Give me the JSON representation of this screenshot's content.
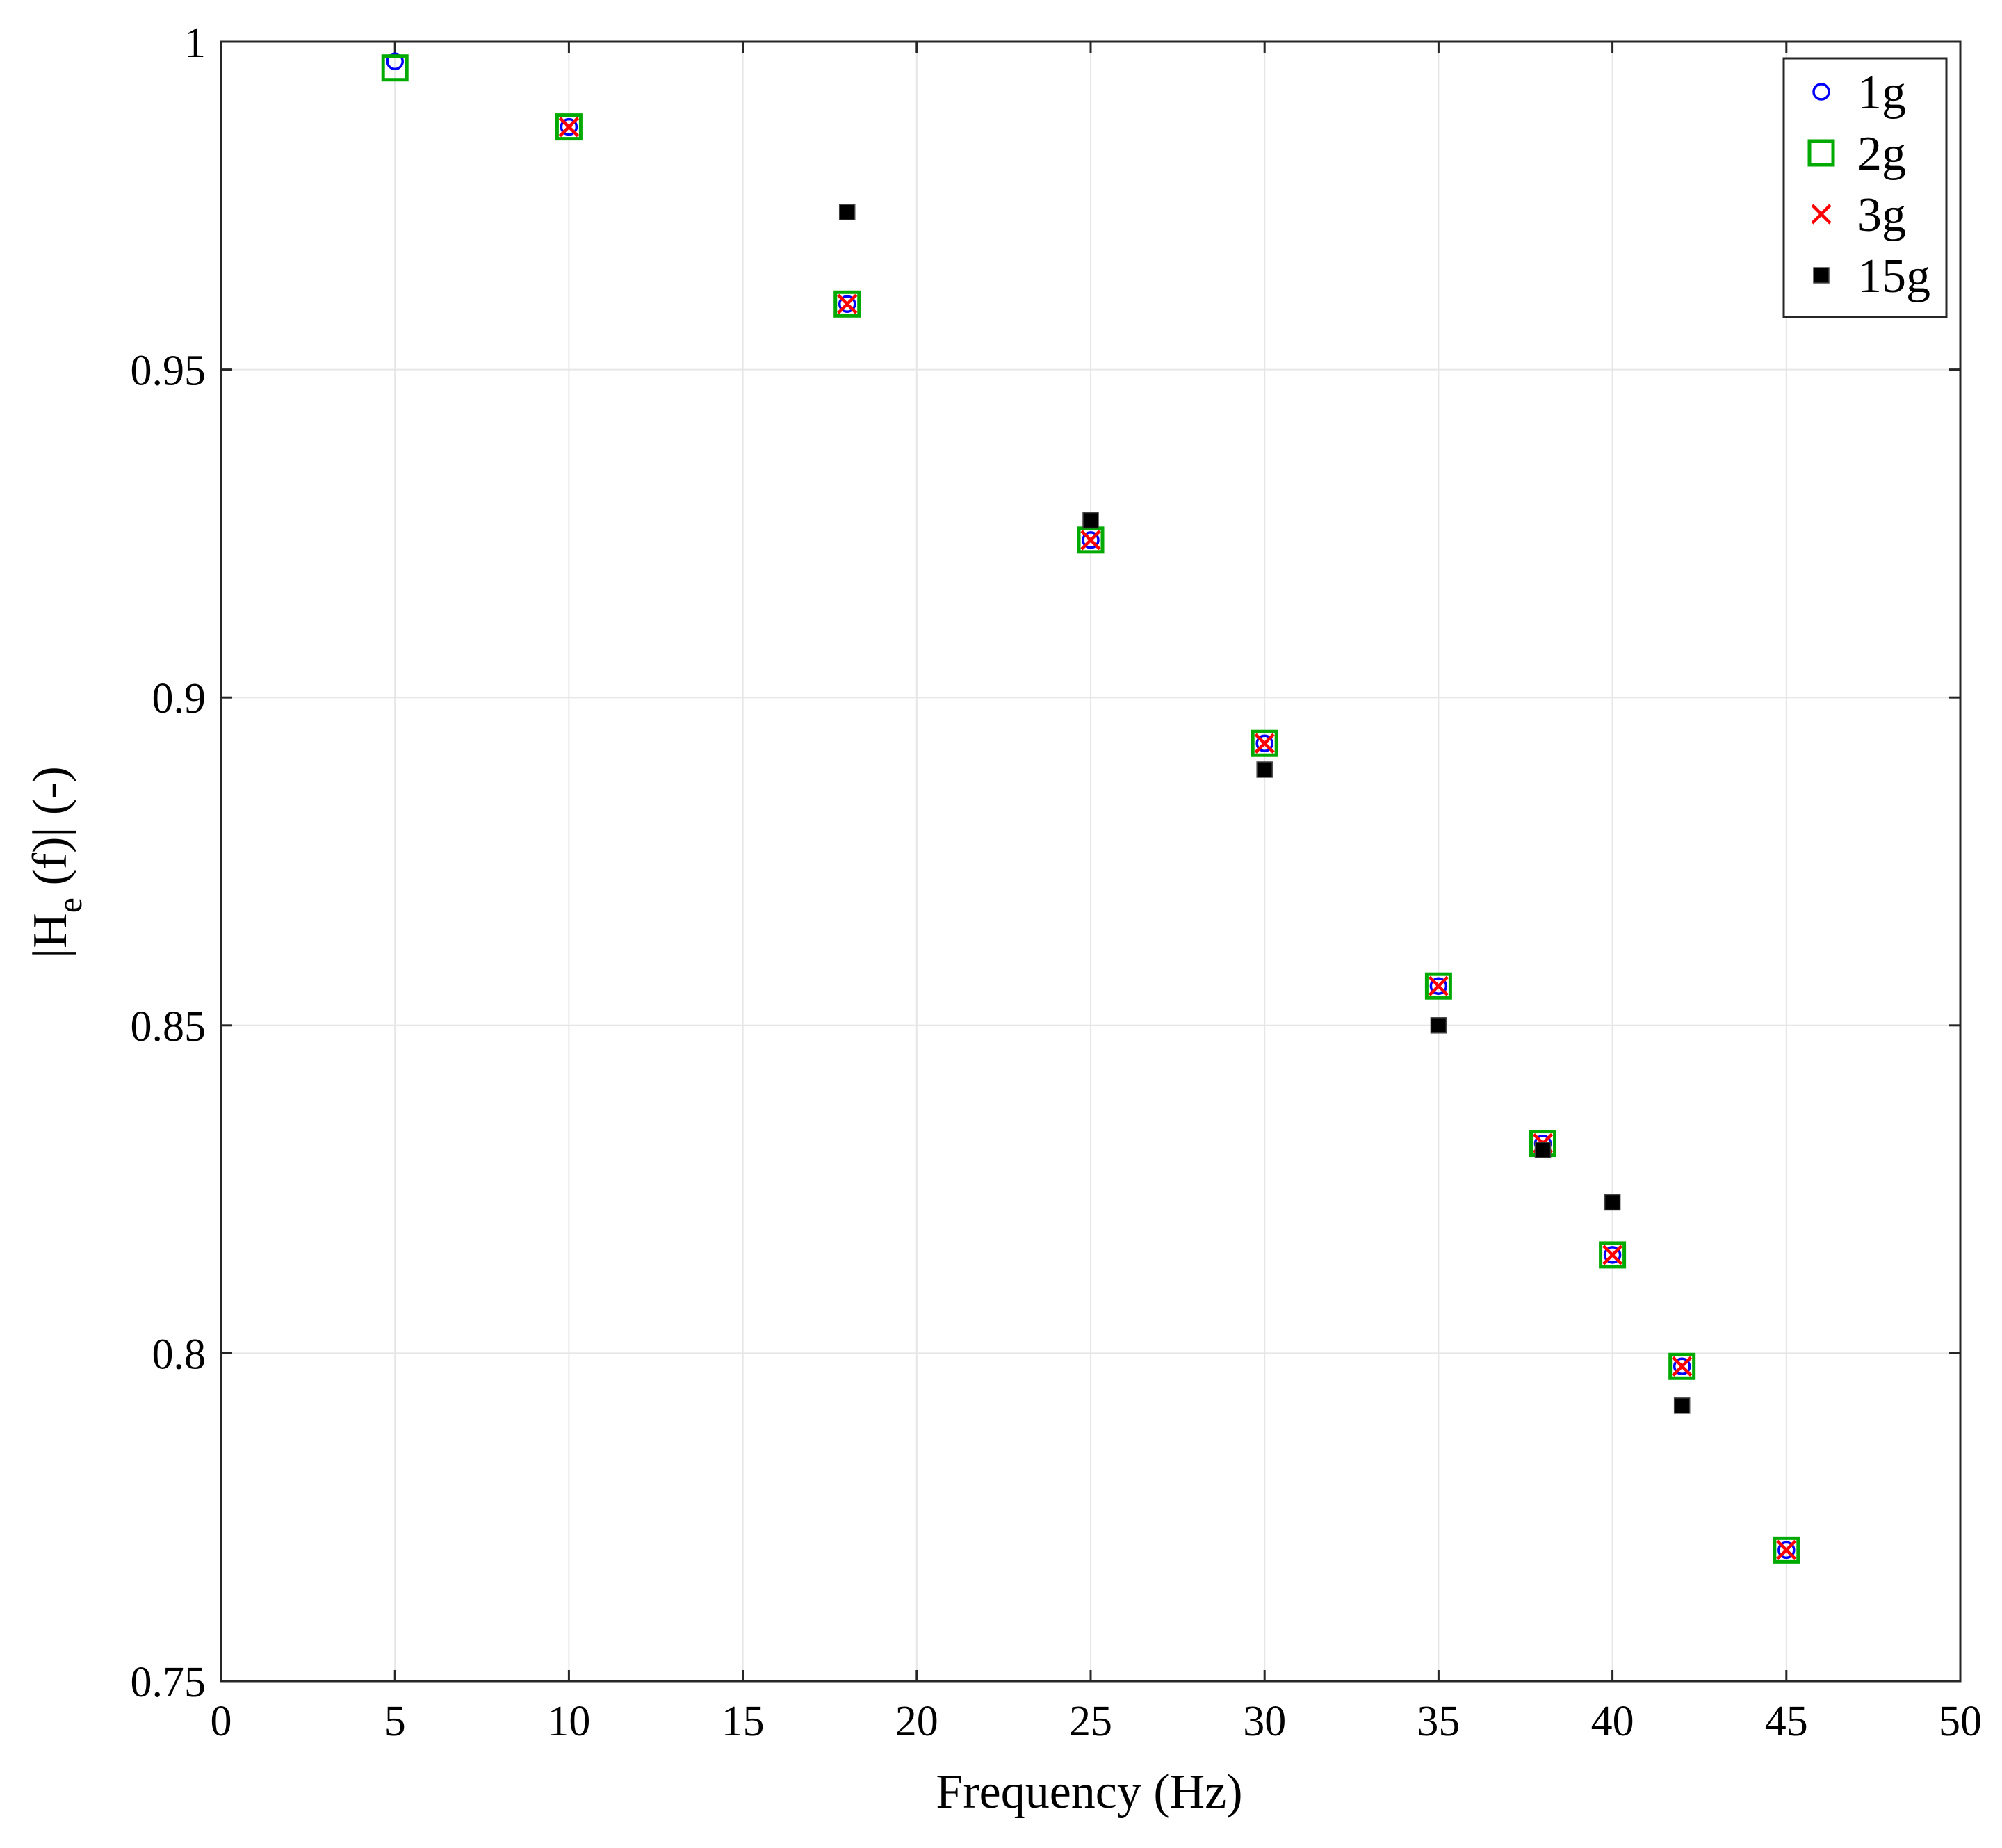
{
  "chart_data": {
    "type": "scatter",
    "title": "",
    "xlabel": "Frequency (Hz)",
    "ylabel_parts": {
      "prefix": "|H",
      "subscript": "e",
      "suffix": " (f)|  (-)"
    },
    "xlim": [
      0,
      50
    ],
    "ylim": [
      0.75,
      1
    ],
    "x_ticks": [
      0,
      5,
      10,
      15,
      20,
      25,
      30,
      35,
      40,
      45,
      50
    ],
    "x_tick_labels": [
      "0",
      "5",
      "10",
      "15",
      "20",
      "25",
      "30",
      "35",
      "40",
      "45",
      "50"
    ],
    "y_ticks": [
      0.75,
      0.8,
      0.85,
      0.9,
      0.95,
      1
    ],
    "y_tick_labels": [
      "0.75",
      "0.8",
      "0.85",
      "0.9",
      "0.95",
      "1"
    ],
    "grid": true,
    "legend_position": "top-right",
    "series": [
      {
        "name": "1g",
        "marker": "circle",
        "color": "#0000ff",
        "x": [
          5,
          10,
          18,
          25,
          30,
          35,
          38,
          40,
          42,
          45
        ],
        "y": [
          0.997,
          0.987,
          0.96,
          0.924,
          0.893,
          0.856,
          0.832,
          0.815,
          0.798,
          0.77
        ]
      },
      {
        "name": "2g",
        "marker": "square",
        "color": "#00aa00",
        "x": [
          5,
          10,
          18,
          25,
          30,
          35,
          38,
          40,
          42,
          45
        ],
        "y": [
          0.996,
          0.987,
          0.96,
          0.924,
          0.893,
          0.856,
          0.832,
          0.815,
          0.798,
          0.77
        ]
      },
      {
        "name": "3g",
        "marker": "x",
        "color": "#ff0000",
        "x": [
          10,
          18,
          25,
          30,
          35,
          38,
          40,
          42,
          45
        ],
        "y": [
          0.987,
          0.96,
          0.924,
          0.893,
          0.856,
          0.832,
          0.815,
          0.798,
          0.77
        ]
      },
      {
        "name": "15g",
        "marker": "filled-square",
        "color": "#000000",
        "x": [
          18,
          25,
          30,
          35,
          38,
          40,
          42
        ],
        "y": [
          0.974,
          0.927,
          0.889,
          0.85,
          0.831,
          0.823,
          0.792
        ]
      }
    ]
  }
}
